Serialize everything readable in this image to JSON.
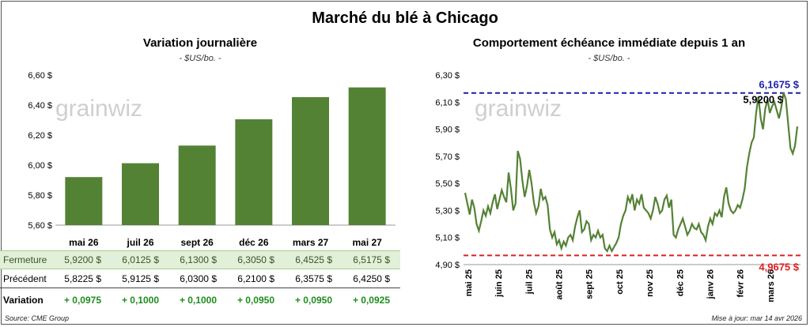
{
  "title": "Marché du blé à Chicago",
  "left_panel": {
    "title": "Variation journalière",
    "subtitle": "- $US/bo. -",
    "watermark": "grainwiz"
  },
  "right_panel": {
    "title": "Comportement échéance immédiate depuis 1 an",
    "subtitle": "- $US/bo. -",
    "watermark": "grainwiz",
    "high_label": "6,1675 $",
    "low_label": "4,9675 $",
    "last_label": "5,9200 $"
  },
  "table": {
    "rows": [
      {
        "label": "Fermeture",
        "values": [
          "5,9200  $",
          "6,0125  $",
          "6,1300  $",
          "6,3050  $",
          "6,4525  $",
          "6,5175  $"
        ]
      },
      {
        "label": "Précédent",
        "values": [
          "5,8225  $",
          "5,9125  $",
          "6,0300  $",
          "6,2100  $",
          "6,3575  $",
          "6,4250  $"
        ]
      },
      {
        "label": "Variation",
        "values": [
          "+ 0,0975",
          "+ 0,1000",
          "+ 0,1000",
          "+ 0,0950",
          "+ 0,0950",
          "+ 0,0925"
        ]
      }
    ]
  },
  "footer": {
    "source": "Source: CME Group",
    "updated": "Mise à jour: mar 14 avr 2026"
  },
  "colors": {
    "bar": "#548235",
    "line": "#548235",
    "high_line": "#1f1fa8",
    "low_line": "#e02020"
  },
  "chart_data": [
    {
      "type": "bar",
      "title": "Variation journalière",
      "categories": [
        "mai 26",
        "juil 26",
        "sept 26",
        "déc 26",
        "mars 27",
        "mai 27"
      ],
      "values": [
        5.92,
        6.0125,
        6.13,
        6.305,
        6.4525,
        6.5175
      ],
      "ylim": [
        5.6,
        6.6
      ],
      "yticks": [
        5.6,
        5.8,
        6.0,
        6.2,
        6.4,
        6.6
      ],
      "ytick_labels": [
        "5,60 $",
        "5,80 $",
        "6,00 $",
        "6,20 $",
        "6,40 $",
        "6,60 $"
      ],
      "grid": false,
      "legend": "none"
    },
    {
      "type": "line",
      "title": "Comportement échéance immédiate depuis 1 an",
      "ylim": [
        4.9,
        6.3
      ],
      "yticks": [
        4.9,
        5.1,
        5.3,
        5.5,
        5.7,
        5.9,
        6.1,
        6.3
      ],
      "ytick_labels": [
        "4,90 $",
        "5,10 $",
        "5,30 $",
        "5,50 $",
        "5,70 $",
        "5,90 $",
        "6,10 $",
        "6,30 $"
      ],
      "x_tick_labels": [
        "mai 25",
        "juin 25",
        "juil 25",
        "août 25",
        "sept 25",
        "oct 25",
        "nov 25",
        "déc 25",
        "janv 26",
        "févr 26",
        "mars 26"
      ],
      "high": 6.1675,
      "low": 4.9675,
      "last": 5.92,
      "values": [
        5.43,
        5.35,
        5.27,
        5.38,
        5.32,
        5.2,
        5.15,
        5.22,
        5.3,
        5.26,
        5.33,
        5.28,
        5.36,
        5.42,
        5.31,
        5.38,
        5.45,
        5.4,
        5.36,
        5.58,
        5.46,
        5.3,
        5.35,
        5.74,
        5.68,
        5.52,
        5.4,
        5.48,
        5.6,
        5.5,
        5.36,
        5.28,
        5.33,
        5.46,
        5.38,
        5.4,
        5.34,
        5.16,
        5.1,
        5.14,
        5.05,
        5.08,
        5.02,
        5.07,
        5.04,
        5.1,
        5.12,
        5.08,
        5.18,
        5.25,
        5.3,
        5.14,
        5.16,
        5.22,
        5.2,
        5.08,
        5.12,
        5.1,
        5.15,
        5.1,
        5.12,
        5.02,
        5.0,
        5.04,
        5.0,
        5.03,
        5.06,
        5.1,
        5.2,
        5.26,
        5.3,
        5.4,
        5.36,
        5.42,
        5.3,
        5.38,
        5.35,
        5.42,
        5.32,
        5.3,
        5.28,
        5.24,
        5.3,
        5.4,
        5.35,
        5.28,
        5.3,
        5.38,
        5.41,
        5.32,
        5.38,
        5.12,
        5.1,
        5.16,
        5.2,
        5.24,
        5.18,
        5.12,
        5.15,
        5.2,
        5.17,
        5.16,
        5.2,
        5.14,
        5.12,
        5.08,
        5.18,
        5.24,
        5.2,
        5.28,
        5.26,
        5.3,
        5.25,
        5.4,
        5.47,
        5.35,
        5.3,
        5.28,
        5.3,
        5.34,
        5.32,
        5.38,
        5.46,
        5.62,
        5.72,
        5.8,
        5.84,
        6.02,
        6.14,
        5.98,
        5.9,
        6.05,
        6.12,
        6.02,
        6.07,
        6.1,
        6.04,
        5.98,
        6.06,
        6.17,
        6.12,
        5.94,
        5.76,
        5.72,
        5.78,
        5.92
      ]
    }
  ]
}
